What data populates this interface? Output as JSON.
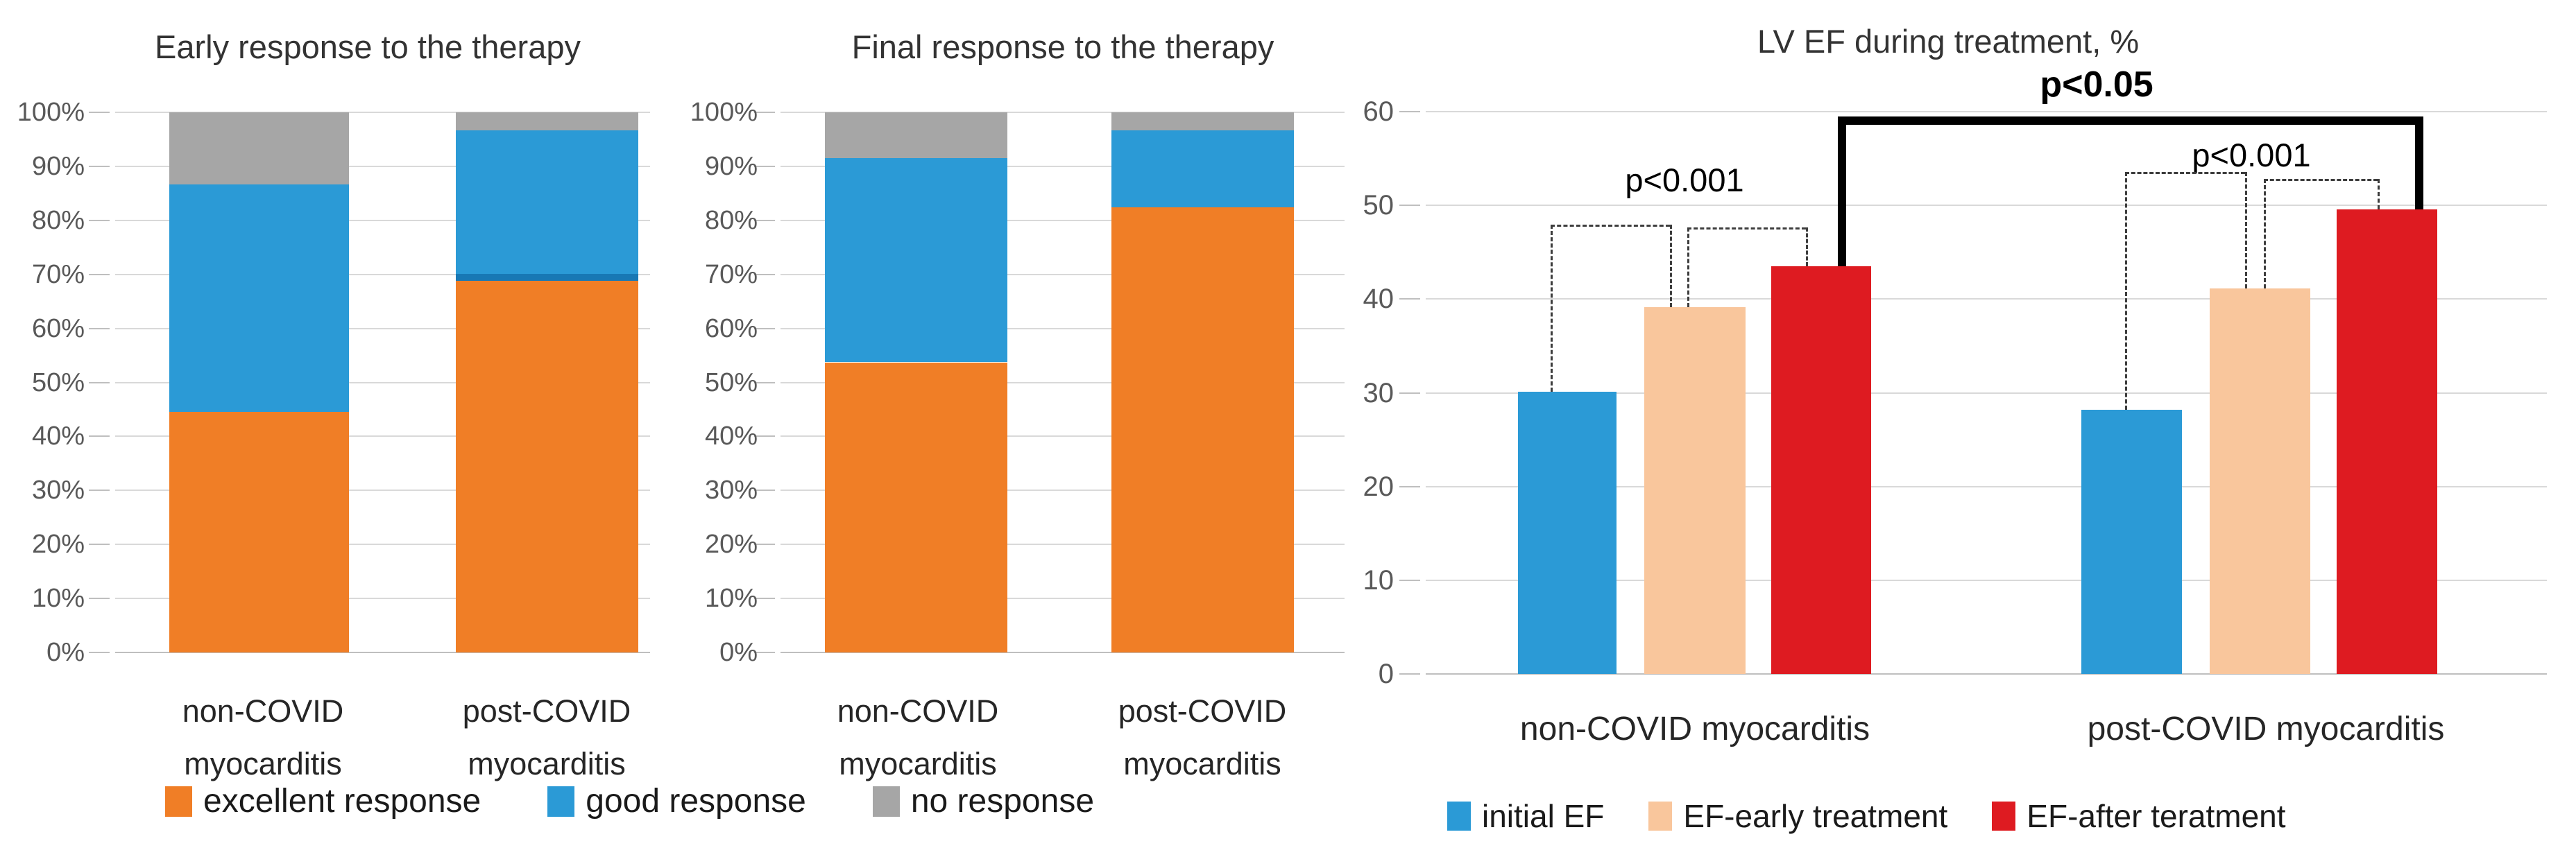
{
  "palette": {
    "orange": "#F07E26",
    "blue": "#2B9AD6",
    "gray": "#A6A6A6",
    "peach": "#F9C69C",
    "red": "#DE1B21",
    "seam_blue": "#1878B4",
    "gridline": "#D9D9D9",
    "axis_line": "#BFBFBF",
    "tick_text": "#595959",
    "label_text": "#262626",
    "annotation": "#000000"
  },
  "chart_data": [
    {
      "id": "early_response",
      "type": "bar",
      "variant": "stacked-100",
      "title": "Early response to the therapy",
      "categories": [
        "non-COVID\nmyocarditis",
        "post-COVID\nmyocarditis"
      ],
      "y_ticks": [
        "0%",
        "10%",
        "20%",
        "30%",
        "40%",
        "50%",
        "60%",
        "70%",
        "80%",
        "90%",
        "100%"
      ],
      "ylim": [
        0,
        100
      ],
      "grid": true,
      "legend_position": "bottom-shared",
      "series": [
        {
          "name": "excellent response",
          "color_key": "orange",
          "values": [
            44.5,
            68.9
          ]
        },
        {
          "name": "good response",
          "color_key": "blue",
          "values": [
            42.1,
            27.8
          ]
        },
        {
          "name": "no response",
          "color_key": "gray",
          "values": [
            13.4,
            3.3
          ]
        }
      ]
    },
    {
      "id": "final_response",
      "type": "bar",
      "variant": "stacked-100",
      "title": "Final response to the therapy",
      "categories": [
        "non-COVID\nmyocarditis",
        "post-COVID\nmyocarditis"
      ],
      "y_ticks": [
        "0%",
        "10%",
        "20%",
        "30%",
        "40%",
        "50%",
        "60%",
        "70%",
        "80%",
        "90%",
        "100%"
      ],
      "ylim": [
        0,
        100
      ],
      "grid": true,
      "legend_position": "bottom-shared",
      "series": [
        {
          "name": "excellent response",
          "color_key": "orange",
          "values": [
            53.7,
            82.5
          ]
        },
        {
          "name": "good response",
          "color_key": "blue",
          "values": [
            37.8,
            14.2
          ]
        },
        {
          "name": "no response",
          "color_key": "gray",
          "values": [
            8.5,
            3.3
          ]
        }
      ]
    },
    {
      "id": "lv_ef",
      "type": "bar",
      "variant": "grouped",
      "title": "LV EF during treatment, %",
      "categories": [
        "non-COVID myocarditis",
        "post-COVID myocarditis"
      ],
      "y_ticks": [
        "0",
        "10",
        "20",
        "30",
        "40",
        "50",
        "60"
      ],
      "ylim": [
        0,
        60
      ],
      "grid": true,
      "legend_position": "bottom",
      "series": [
        {
          "name": "initial EF",
          "color_key": "blue",
          "values": [
            30.1,
            28.2
          ]
        },
        {
          "name": "EF-early treatment",
          "color_key": "peach",
          "values": [
            39.1,
            41.1
          ]
        },
        {
          "name": "EF-after teratment",
          "color_key": "red",
          "values": [
            43.5,
            49.6
          ]
        }
      ],
      "annotations": [
        {
          "text": "p<0.001",
          "style": "regular"
        },
        {
          "text": "p<0.001",
          "style": "regular"
        },
        {
          "text": "p<0.05",
          "style": "bold"
        }
      ]
    }
  ],
  "legend_left": {
    "items": [
      {
        "label": "excellent response",
        "color_key": "orange"
      },
      {
        "label": "good response",
        "color_key": "blue"
      },
      {
        "label": "no response",
        "color_key": "gray"
      }
    ]
  },
  "legend_right": {
    "items": [
      {
        "label": "initial EF",
        "color_key": "blue"
      },
      {
        "label": "EF-early treatment",
        "color_key": "peach"
      },
      {
        "label": "EF-after teratment",
        "color_key": "red"
      }
    ]
  }
}
